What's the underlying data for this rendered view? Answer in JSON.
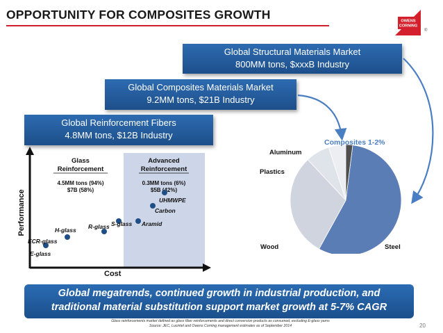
{
  "slide": {
    "title": "OPPORTUNITY FOR COMPOSITES GROWTH",
    "page_number": "20",
    "logo_text": [
      "OWENS",
      "CORNING"
    ],
    "logo_mark": "®"
  },
  "banners": [
    {
      "line1": "Global Structural Materials Market",
      "line2": "800MM tons, $xxxB Industry"
    },
    {
      "line1": "Global Composites Materials Market",
      "line2": "9.2MM tons, $21B Industry"
    },
    {
      "line1": "Global Reinforcement Fibers",
      "line2": "4.8MM tons, $12B Industry"
    }
  ],
  "scatter": {
    "y_label": "Performance",
    "x_label": "Cost",
    "glass": {
      "heading1": "Glass",
      "heading2": "Reinforcement",
      "stat1": "4.5MM tons (94%)",
      "stat2": "$7B (58%)"
    },
    "advanced": {
      "heading1": "Advanced",
      "heading2": "Reinforcement",
      "stat1": "0.3MM tons (6%)",
      "stat2": "$5B (42%)"
    },
    "points": [
      {
        "label": "ECR-glass"
      },
      {
        "label": "E-glass"
      },
      {
        "label": "H-glass"
      },
      {
        "label": "R-glass"
      },
      {
        "label": "S-glass"
      },
      {
        "label": "Aramid"
      },
      {
        "label": "Carbon"
      },
      {
        "label": "UHMWPE"
      }
    ]
  },
  "pie": {
    "callout": "Composites 1-2%",
    "slices": [
      {
        "label": "Steel",
        "value": 56,
        "color": "#5b7db5"
      },
      {
        "label": "Wood",
        "value": 30,
        "color": "#cfd4df"
      },
      {
        "label": "Plastics",
        "value": 7,
        "color": "#dfe3ea"
      },
      {
        "label": "Aluminum",
        "value": 5,
        "color": "#eceef2"
      },
      {
        "label": "",
        "value": 2,
        "color": "#4f4f4f"
      }
    ]
  },
  "bottom_banner": {
    "line1": "Global megatrends, continued growth in industrial production, and",
    "line2": "traditional material substitution support market growth at 5-7% CAGR"
  },
  "footnote": {
    "line1": "Glass reinforcements market defined as glass fiber reinforcements and direct conversion products as consumed, excluding E-glass yarns",
    "line2": "Source: JEC, Lucintel and Owens Corning management estimates as of September 2014"
  }
}
